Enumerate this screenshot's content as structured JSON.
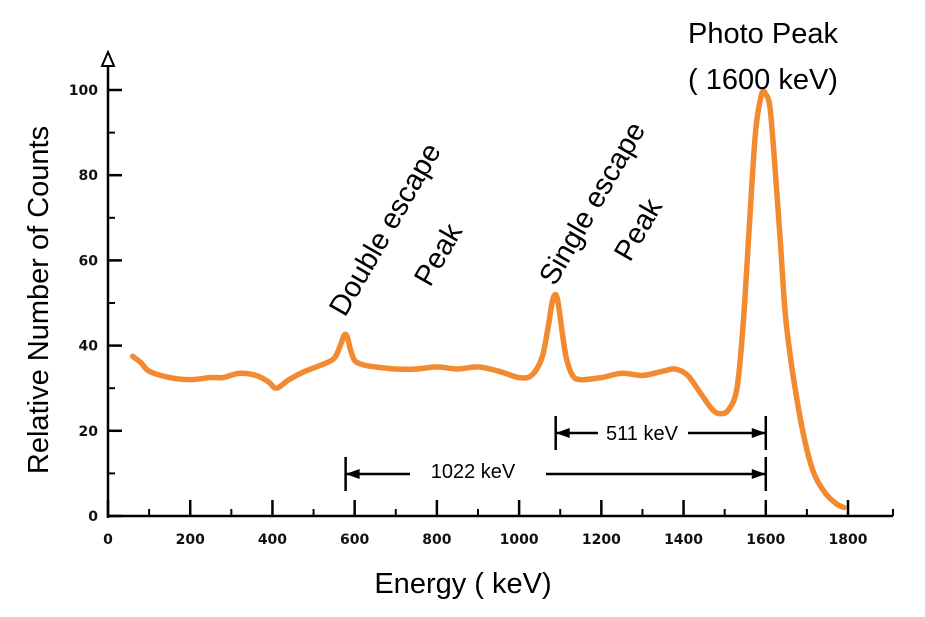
{
  "chart_data": {
    "type": "line",
    "title": "",
    "xlabel": "Energy ( keV)",
    "ylabel": "Relative Number of Counts",
    "xlim": [
      0,
      1800
    ],
    "ylim": [
      0,
      100
    ],
    "x_ticks": [
      0,
      200,
      400,
      600,
      800,
      1000,
      1200,
      1400,
      1600,
      1800
    ],
    "y_ticks": [
      0,
      20,
      40,
      60,
      80,
      100
    ],
    "grid": false,
    "line_color": "#f28a30",
    "series": [
      {
        "x": [
          60,
          80,
          100,
          150,
          200,
          250,
          280,
          320,
          360,
          390,
          410,
          440,
          480,
          520,
          550,
          565,
          575,
          582,
          590,
          600,
          620,
          650,
          700,
          750,
          800,
          850,
          900,
          950,
          1000,
          1030,
          1055,
          1070,
          1080,
          1088,
          1095,
          1105,
          1115,
          1130,
          1150,
          1200,
          1250,
          1300,
          1350,
          1380,
          1410,
          1440,
          1470,
          1490,
          1510,
          1530,
          1545,
          1560,
          1575,
          1590,
          1600,
          1610,
          1620,
          1635,
          1650,
          1680,
          1710,
          1740,
          1770,
          1790
        ],
        "y": [
          37.5,
          36,
          34,
          32.5,
          32,
          32.5,
          32.5,
          33.5,
          33,
          31.5,
          30,
          32,
          34,
          35.5,
          37,
          40,
          42.5,
          42,
          39,
          36.5,
          35.5,
          35,
          34.5,
          34.5,
          35,
          34.5,
          35,
          34,
          32.5,
          33,
          37,
          44,
          50,
          52,
          50,
          43,
          37,
          33,
          32,
          32.5,
          33.5,
          33,
          34,
          34.5,
          33,
          29,
          25,
          24,
          25,
          30,
          45,
          68,
          90,
          99,
          99,
          96,
          85,
          65,
          45,
          25,
          12,
          6,
          3,
          2
        ]
      }
    ],
    "annotations": {
      "photo_peak": [
        "Photo Peak",
        "( 1600 keV)"
      ],
      "single_escape": [
        "Single escape",
        "Peak"
      ],
      "double_escape": [
        "Double escape",
        "Peak"
      ],
      "single_range": {
        "label": "511 keV",
        "from": 1089,
        "to": 1600
      },
      "double_range": {
        "label": "1022 keV",
        "from": 578,
        "to": 1600
      }
    }
  }
}
